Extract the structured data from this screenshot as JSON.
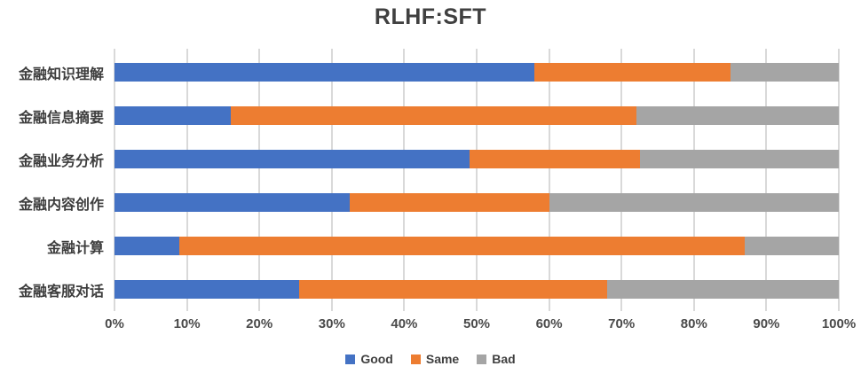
{
  "chart_data": {
    "type": "bar",
    "orientation": "horizontal",
    "stacked": true,
    "title": "RLHF:SFT",
    "categories": [
      "金融知识理解",
      "金融信息摘要",
      "金融业务分析",
      "金融内容创作",
      "金融计算",
      "金融客服对话"
    ],
    "series": [
      {
        "name": "Good",
        "color": "#4472C4",
        "values": [
          58,
          16,
          49,
          32.5,
          9,
          25.5
        ]
      },
      {
        "name": "Same",
        "color": "#ED7D31",
        "values": [
          27,
          56,
          23.5,
          27.5,
          78,
          42.5
        ]
      },
      {
        "name": "Bad",
        "color": "#A5A5A5",
        "values": [
          15,
          28,
          27.5,
          40,
          13,
          32
        ]
      }
    ],
    "x_ticks": [
      "0%",
      "10%",
      "20%",
      "30%",
      "40%",
      "50%",
      "60%",
      "70%",
      "80%",
      "90%",
      "100%"
    ],
    "xlim": [
      0,
      100
    ],
    "grid": "vertical",
    "legend_position": "bottom",
    "colors": {
      "gridline": "#D9D9D9",
      "title_text": "#404040",
      "axis_text": "#4A4A4A",
      "background": "#FFFFFF"
    }
  }
}
